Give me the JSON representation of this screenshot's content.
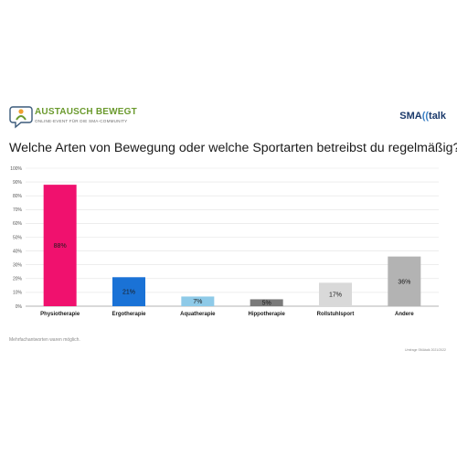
{
  "header": {
    "logo_title": "AUSTAUSCH BEWEGT",
    "logo_subtitle": "ONLINE-EVENT FÜR DIE SMA-COMMUNITY",
    "logo_icon": "person-in-speech-bubble-icon",
    "brand_part1": "SMA",
    "brand_part2": "((",
    "brand_part3": "talk",
    "colors": {
      "green": "#6b9a2e",
      "navy": "#1b3a6b",
      "blue": "#3a7fc4"
    }
  },
  "chart_data": {
    "type": "bar",
    "title": "Welche Arten von Bewegung oder welche Sportarten betreibst du regelmäßig?",
    "categories": [
      "Physiotherapie",
      "Ergotherapie",
      "Aquatherapie",
      "Hippotherapie",
      "Rollstuhlsport",
      "Andere"
    ],
    "values": [
      88,
      21,
      7,
      5,
      17,
      36
    ],
    "value_labels": [
      "88%",
      "21%",
      "7%",
      "5%",
      "17%",
      "36%"
    ],
    "colors": [
      "#f0116e",
      "#1a72d6",
      "#8ecae8",
      "#7a7a7a",
      "#d9d9d9",
      "#b3b3b3"
    ],
    "ylim": [
      0,
      100
    ],
    "yticks": [
      0,
      10,
      20,
      30,
      40,
      50,
      60,
      70,
      80,
      90,
      100
    ],
    "ytick_labels": [
      "0%",
      "10%",
      "20%",
      "30%",
      "40%",
      "50%",
      "60%",
      "70%",
      "80%",
      "90%",
      "100%"
    ],
    "grid": true,
    "xlabel": "",
    "ylabel": ""
  },
  "footer": {
    "note": "Mehrfachantworten waren möglich.",
    "source": "Umfrage SMAtalk 2021/2022"
  }
}
